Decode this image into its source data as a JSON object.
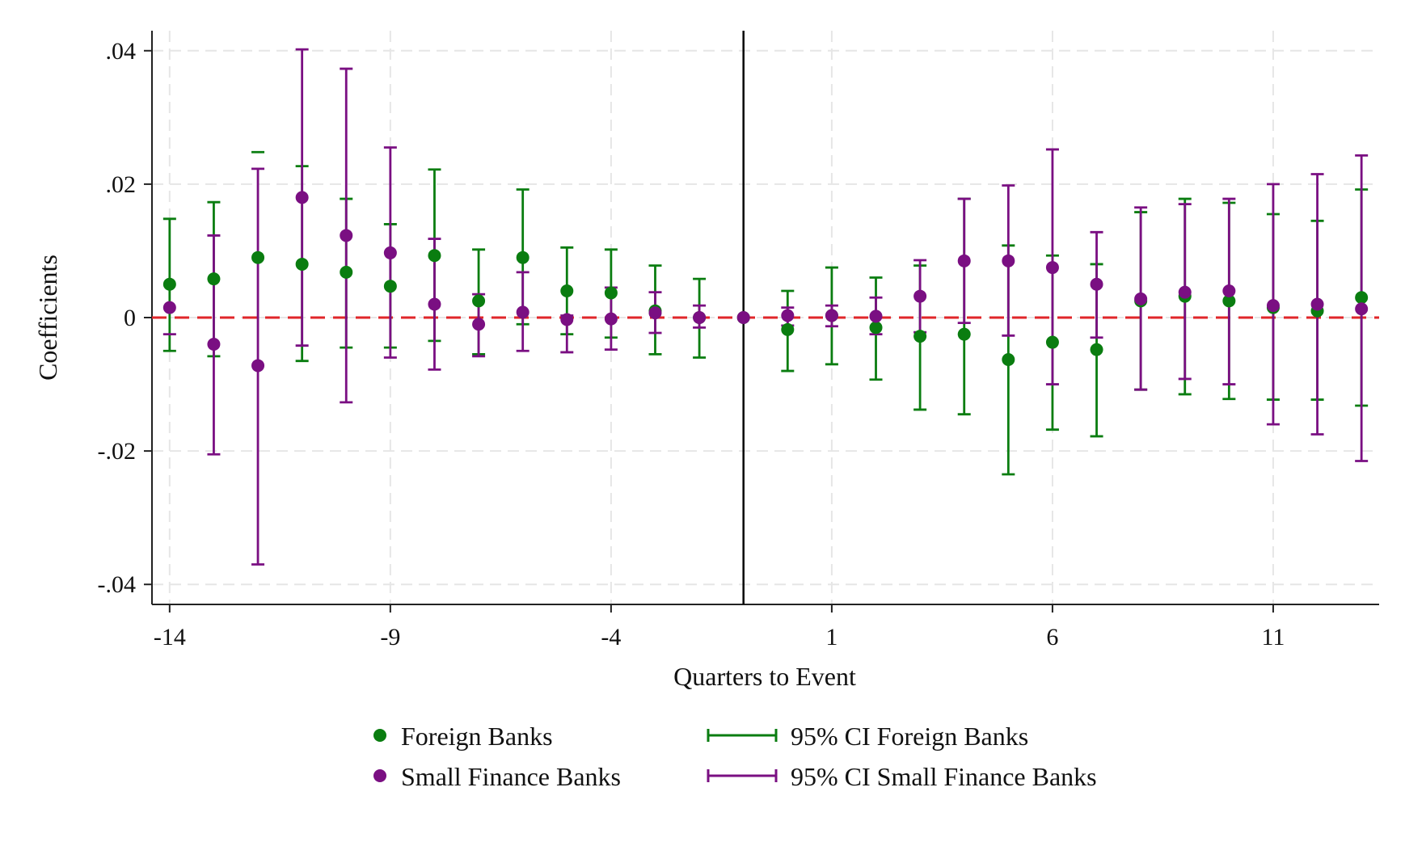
{
  "chart_data": {
    "type": "scatter",
    "xlabel": "Quarters to Event",
    "ylabel": "Coefficients",
    "xlim": [
      -14.4,
      13.4
    ],
    "ylim": [
      -0.043,
      0.043
    ],
    "xticks": [
      -14,
      -9,
      -4,
      1,
      6,
      11
    ],
    "xtick_labels": [
      "-14",
      "-9",
      "-4",
      "1",
      "6",
      "11"
    ],
    "yticks": [
      0.04,
      0.02,
      0,
      -0.02,
      -0.04
    ],
    "ytick_labels": [
      ".04",
      ".02",
      "0",
      "-.02",
      "-.04"
    ],
    "grid": true,
    "reference_line": {
      "y": 0,
      "color": "#e0262a",
      "style": "dashed"
    },
    "event_line": {
      "x": -1,
      "color": "#000000"
    },
    "x": [
      -14,
      -13,
      -12,
      -11,
      -10,
      -9,
      -8,
      -7,
      -6,
      -5,
      -4,
      -3,
      -2,
      -1,
      0,
      1,
      2,
      3,
      4,
      5,
      6,
      7,
      8,
      9,
      10,
      11,
      12,
      13
    ],
    "series": [
      {
        "name": "Foreign Banks",
        "ci_name": "95% CI Foreign Banks",
        "color": "#0a7d10",
        "values": [
          0.005,
          0.0058,
          0.009,
          0.008,
          0.0068,
          0.0047,
          0.0093,
          0.0025,
          0.009,
          0.004,
          0.0037,
          0.001,
          0,
          0,
          -0.0018,
          0.0003,
          -0.0015,
          -0.0028,
          -0.0025,
          -0.0063,
          -0.0037,
          -0.0048,
          0.0025,
          0.0032,
          0.0025,
          0.0015,
          0.001,
          0.003
        ],
        "ci_low": [
          -0.005,
          -0.0058,
          null,
          -0.0065,
          -0.0045,
          -0.0045,
          -0.0035,
          -0.0055,
          -0.001,
          -0.0025,
          -0.003,
          -0.0055,
          -0.006,
          0,
          -0.008,
          -0.007,
          -0.0093,
          -0.0138,
          -0.0145,
          -0.0235,
          -0.0168,
          -0.0178,
          -0.0108,
          -0.0115,
          -0.0122,
          -0.0123,
          -0.0123,
          -0.0132
        ],
        "ci_high": [
          0.0148,
          0.0173,
          0.0248,
          0.0227,
          0.0178,
          0.014,
          0.0222,
          0.0102,
          0.0192,
          0.0105,
          0.0102,
          0.0078,
          0.0058,
          0,
          0.004,
          0.0075,
          0.006,
          0.0078,
          0.0178,
          0.0108,
          0.0093,
          0.008,
          0.0158,
          0.0178,
          0.0172,
          0.0155,
          0.0145,
          0.0192
        ]
      },
      {
        "name": "Small Finance Banks",
        "ci_name": "95% CI Small Finance Banks",
        "color": "#7a0f82",
        "values": [
          0.0015,
          -0.004,
          -0.0072,
          0.018,
          0.0123,
          0.0097,
          0.002,
          -0.001,
          0.0008,
          -0.0003,
          -0.0002,
          0.0007,
          0,
          0,
          0.0003,
          0.0003,
          0.0002,
          0.0032,
          0.0085,
          0.0085,
          0.0075,
          0.005,
          0.0028,
          0.0038,
          0.004,
          0.0018,
          0.002,
          0.0013
        ],
        "ci_low": [
          -0.0025,
          -0.0205,
          -0.037,
          -0.0042,
          -0.0127,
          -0.006,
          -0.0078,
          -0.0058,
          -0.005,
          -0.0052,
          -0.0048,
          -0.0023,
          -0.0015,
          0,
          -0.0012,
          -0.0013,
          -0.0025,
          -0.0022,
          -0.0008,
          -0.0027,
          -0.01,
          -0.003,
          -0.0108,
          -0.0092,
          -0.01,
          -0.016,
          -0.0175,
          -0.0215
        ],
        "ci_high": [
          null,
          0.0123,
          0.0223,
          0.0402,
          0.0373,
          0.0255,
          0.0118,
          0.0035,
          0.0068,
          0.0003,
          0.0045,
          0.0038,
          0.0018,
          0,
          0.0015,
          0.0018,
          0.003,
          0.0086,
          0.0178,
          0.0198,
          0.0252,
          0.0128,
          0.0165,
          0.017,
          0.0178,
          0.02,
          0.0215,
          0.0243
        ]
      }
    ],
    "legend": {
      "position": "bottom",
      "items": [
        {
          "label": "Foreign Banks",
          "kind": "marker",
          "series": 0
        },
        {
          "label": "Small Finance Banks",
          "kind": "marker",
          "series": 1
        },
        {
          "label": "95% CI Foreign Banks",
          "kind": "ci",
          "series": 0
        },
        {
          "label": "95% CI Small Finance Banks",
          "kind": "ci",
          "series": 1
        }
      ]
    },
    "colors": {
      "grid": "#e6e6e6",
      "axis": "#222222",
      "reference": "#e0262a"
    }
  }
}
